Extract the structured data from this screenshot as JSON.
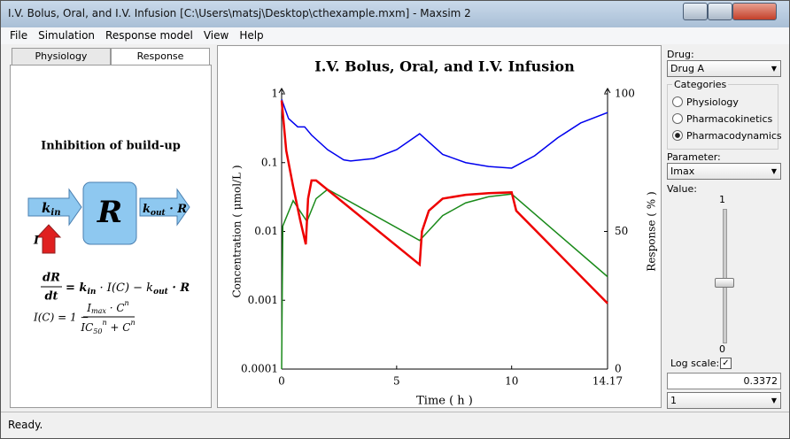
{
  "window": {
    "title": "I.V. Bolus, Oral, and I.V. Infusion [C:\\Users\\matsj\\Desktop\\cthexample.mxm] - Maxsim 2"
  },
  "menu": [
    "File",
    "Simulation",
    "Response model",
    "View",
    "Help"
  ],
  "tabs": [
    {
      "label": "Physiology",
      "active": false
    },
    {
      "label": "Response",
      "active": true
    }
  ],
  "response_model": {
    "heading": "Inhibition of build-up",
    "diagram": {
      "k_in": [
        "k",
        "in"
      ],
      "box": "R",
      "k_out": [
        "k",
        "out",
        " · R"
      ],
      "inhibitor": "I"
    },
    "equation_1": {
      "numerator": "dR",
      "denominator": "dt",
      "rhs": [
        "= k",
        "in",
        " · I(C) − k",
        "out",
        " · R"
      ]
    },
    "equation_2": {
      "lhs": "I(C) = 1 −",
      "numerator": [
        "I",
        "max",
        " · C",
        "n"
      ],
      "denominator": [
        "IC",
        "50",
        "n",
        " + C",
        "n"
      ]
    }
  },
  "chart_data": {
    "type": "line",
    "title": "I.V. Bolus, Oral, and I.V. Infusion",
    "xlabel": "Time ( h )",
    "ylabel": "Concentration ( μmol/L )",
    "y2label": "Response ( % )",
    "xlim": [
      0,
      14.17
    ],
    "xticks": [
      0,
      5,
      10,
      14.17
    ],
    "ylim": [
      0.0001,
      1
    ],
    "yticks": [
      0.0001,
      0.001,
      0.01,
      0.1,
      1
    ],
    "log_y": true,
    "y2lim": [
      0,
      100
    ],
    "y2ticks": [
      0,
      50,
      100
    ],
    "series": [
      {
        "color": "#0000ee",
        "axis": "y2",
        "x": [
          0,
          0.3,
          0.7,
          1.0,
          1.3,
          2,
          2.7,
          3,
          4,
          5,
          6,
          7,
          8,
          9,
          10,
          11,
          12,
          13,
          14.17
        ],
        "values": [
          98,
          91,
          88,
          88,
          85,
          79.7,
          76,
          75.6,
          76.5,
          79.7,
          85.5,
          78,
          75,
          73.6,
          73,
          77.5,
          84,
          89.4,
          93.2
        ]
      },
      {
        "color": "#1a8a1a",
        "x": [
          0,
          0.05,
          0.5,
          1.1,
          1.5,
          2,
          6,
          6.3,
          7,
          8,
          9,
          10,
          14.17
        ],
        "values": [
          0.0001,
          0.012,
          0.028,
          0.014,
          0.03,
          0.041,
          0.0074,
          0.0095,
          0.017,
          0.026,
          0.032,
          0.035,
          0.0022
        ]
      },
      {
        "color": "#ee0000",
        "x": [
          0,
          0.2,
          0.5,
          0.8,
          1.05,
          1.15,
          1.3,
          1.5,
          6,
          6.1,
          6.4,
          7,
          8,
          9,
          10,
          10.2,
          14.17
        ],
        "values": [
          0.8,
          0.15,
          0.045,
          0.015,
          0.0065,
          0.03,
          0.055,
          0.055,
          0.0033,
          0.01,
          0.02,
          0.03,
          0.034,
          0.036,
          0.037,
          0.02,
          0.0009
        ]
      }
    ]
  },
  "controls": {
    "drug_label": "Drug:",
    "drug": "Drug A",
    "categories_title": "Categories",
    "categories": [
      {
        "label": "Physiology",
        "checked": false
      },
      {
        "label": "Pharmacokinetics",
        "checked": false
      },
      {
        "label": "Pharmacodynamics",
        "checked": true
      }
    ],
    "parameter_label": "Parameter:",
    "parameter": "Imax",
    "value_label": "Value:",
    "slider_max": "1",
    "slider_min": "0",
    "log_scale_label": "Log scale:",
    "log_scale": true,
    "value": "0.3372",
    "selector": "1"
  },
  "status": "Ready."
}
